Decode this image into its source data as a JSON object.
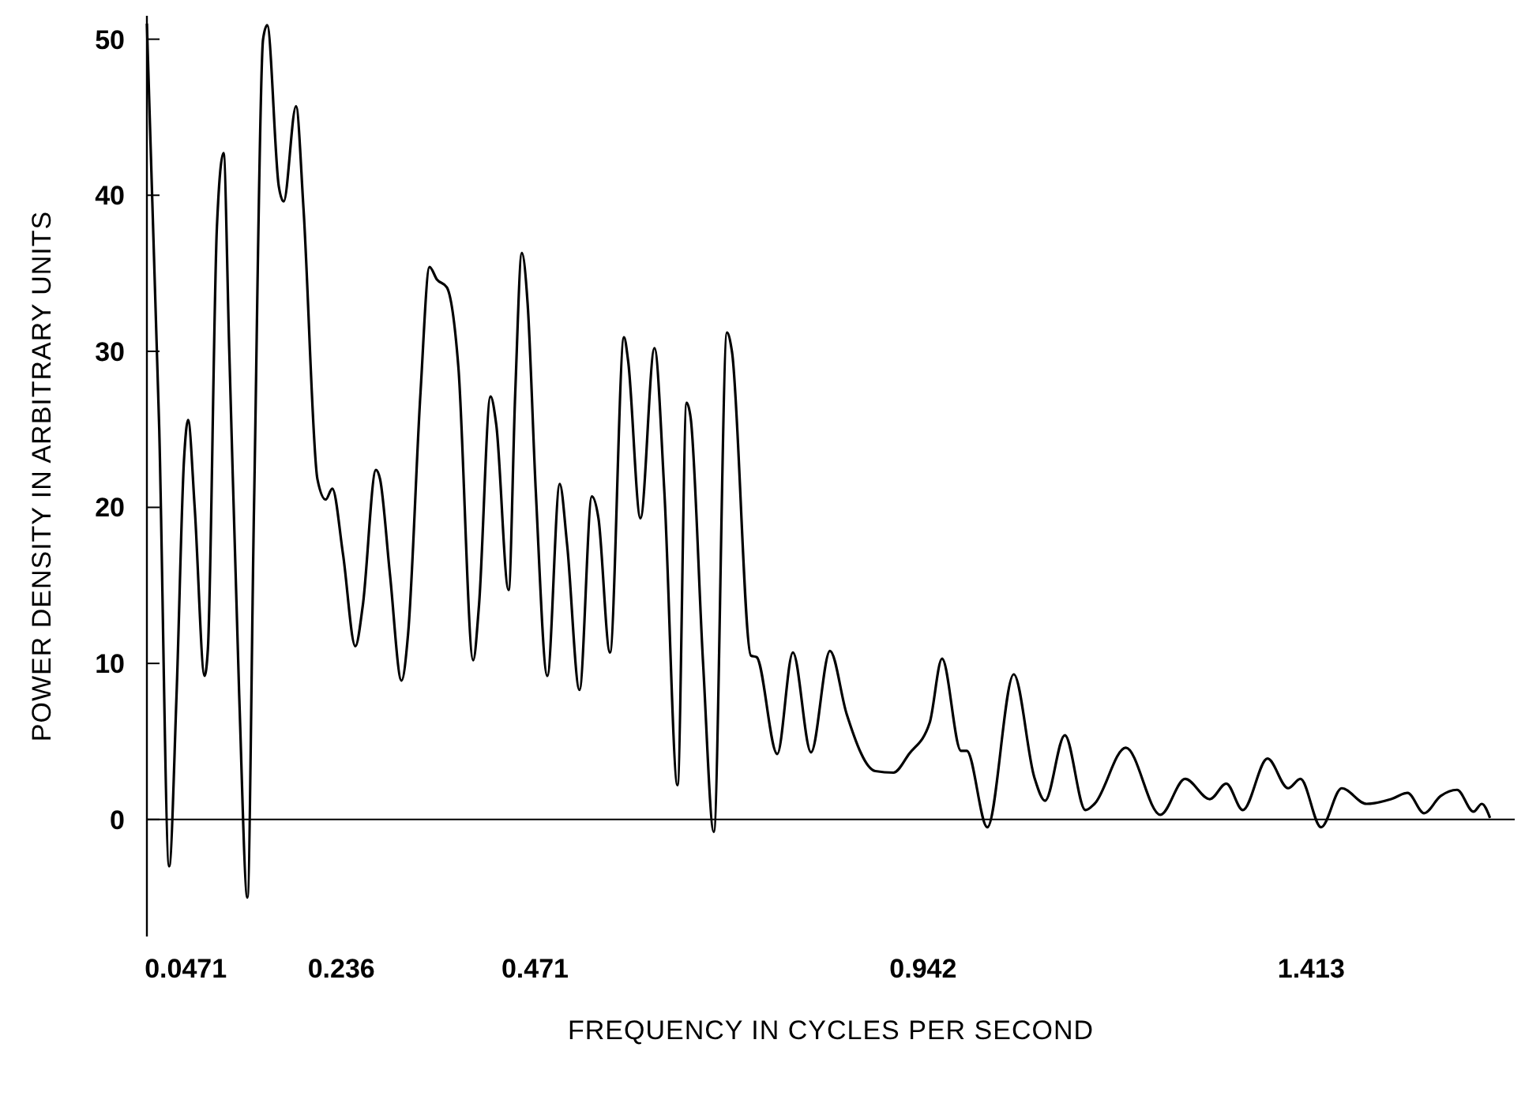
{
  "chart_data": {
    "type": "line",
    "xlabel": "FREQUENCY IN CYCLES PER SECOND",
    "ylabel": "POWER DENSITY IN ARBITRARY UNITS",
    "xlim": [
      0,
      1.66
    ],
    "ylim": [
      -7.5,
      51.5
    ],
    "xticks": [
      0.0471,
      0.236,
      0.471,
      0.942,
      1.413
    ],
    "yticks": [
      0,
      10,
      20,
      30,
      40,
      50
    ],
    "grid": false,
    "marker": "none",
    "line_style": "solid",
    "ref_lines": [
      {
        "axis": "y",
        "value": 0
      }
    ],
    "series": [
      {
        "color": "#000000",
        "x": [
          0,
          0.015,
          0.027,
          0.036,
          0.045,
          0.05,
          0.058,
          0.07,
          0.074,
          0.085,
          0.093,
          0.1,
          0.112,
          0.122,
          0.13,
          0.141,
          0.146,
          0.16,
          0.166,
          0.181,
          0.19,
          0.207,
          0.217,
          0.225,
          0.238,
          0.253,
          0.262,
          0.278,
          0.283,
          0.295,
          0.309,
          0.317,
          0.332,
          0.343,
          0.352,
          0.364,
          0.378,
          0.396,
          0.403,
          0.417,
          0.424,
          0.439,
          0.447,
          0.455,
          0.462,
          0.472,
          0.486,
          0.501,
          0.51,
          0.525,
          0.54,
          0.548,
          0.562,
          0.579,
          0.584,
          0.599,
          0.616,
          0.628,
          0.644,
          0.655,
          0.66,
          0.675,
          0.688,
          0.704,
          0.71,
          0.733,
          0.74,
          0.765,
          0.784,
          0.806,
          0.829,
          0.849,
          0.884,
          0.906,
          0.925,
          0.95,
          0.965,
          0.988,
          0.995,
          1.02,
          1.052,
          1.077,
          1.09,
          1.114,
          1.139,
          1.15,
          1.188,
          1.23,
          1.26,
          1.29,
          1.31,
          1.33,
          1.36,
          1.385,
          1.4,
          1.425,
          1.45,
          1.48,
          1.51,
          1.53,
          1.55,
          1.57,
          1.59,
          1.61,
          1.62,
          1.63
        ],
        "values": [
          51,
          25,
          -3,
          8,
          23,
          25.6,
          20,
          9.2,
          10.9,
          38,
          42.7,
          30,
          8,
          -5,
          20,
          50,
          50.9,
          40.6,
          39.6,
          45.7,
          39.2,
          21.8,
          20.5,
          21.2,
          17,
          11.1,
          13.7,
          22.4,
          21.8,
          15.7,
          8.9,
          11.9,
          27.3,
          35.4,
          34.6,
          34.1,
          29,
          10.2,
          13.7,
          27.1,
          25.3,
          14.7,
          27.3,
          36.3,
          33.1,
          21,
          9.2,
          21.5,
          17.6,
          8.3,
          20.7,
          19.3,
          10.7,
          30.9,
          29.4,
          19.3,
          30.2,
          21,
          2.2,
          26.7,
          25.7,
          10,
          -0.8,
          31.2,
          30,
          10.5,
          10.4,
          4.2,
          10.7,
          4.3,
          10.8,
          6.8,
          3.1,
          3,
          4.2,
          6.2,
          10.3,
          4.4,
          4.4,
          -0.5,
          9.3,
          2.7,
          1.2,
          5.4,
          0.6,
          1,
          4.6,
          0.3,
          2.6,
          1.3,
          2.3,
          0.6,
          3.9,
          2,
          2.6,
          -0.5,
          2,
          1,
          1.3,
          1.7,
          0.4,
          1.5,
          1.9,
          0.5,
          1,
          0.1
        ]
      }
    ]
  }
}
